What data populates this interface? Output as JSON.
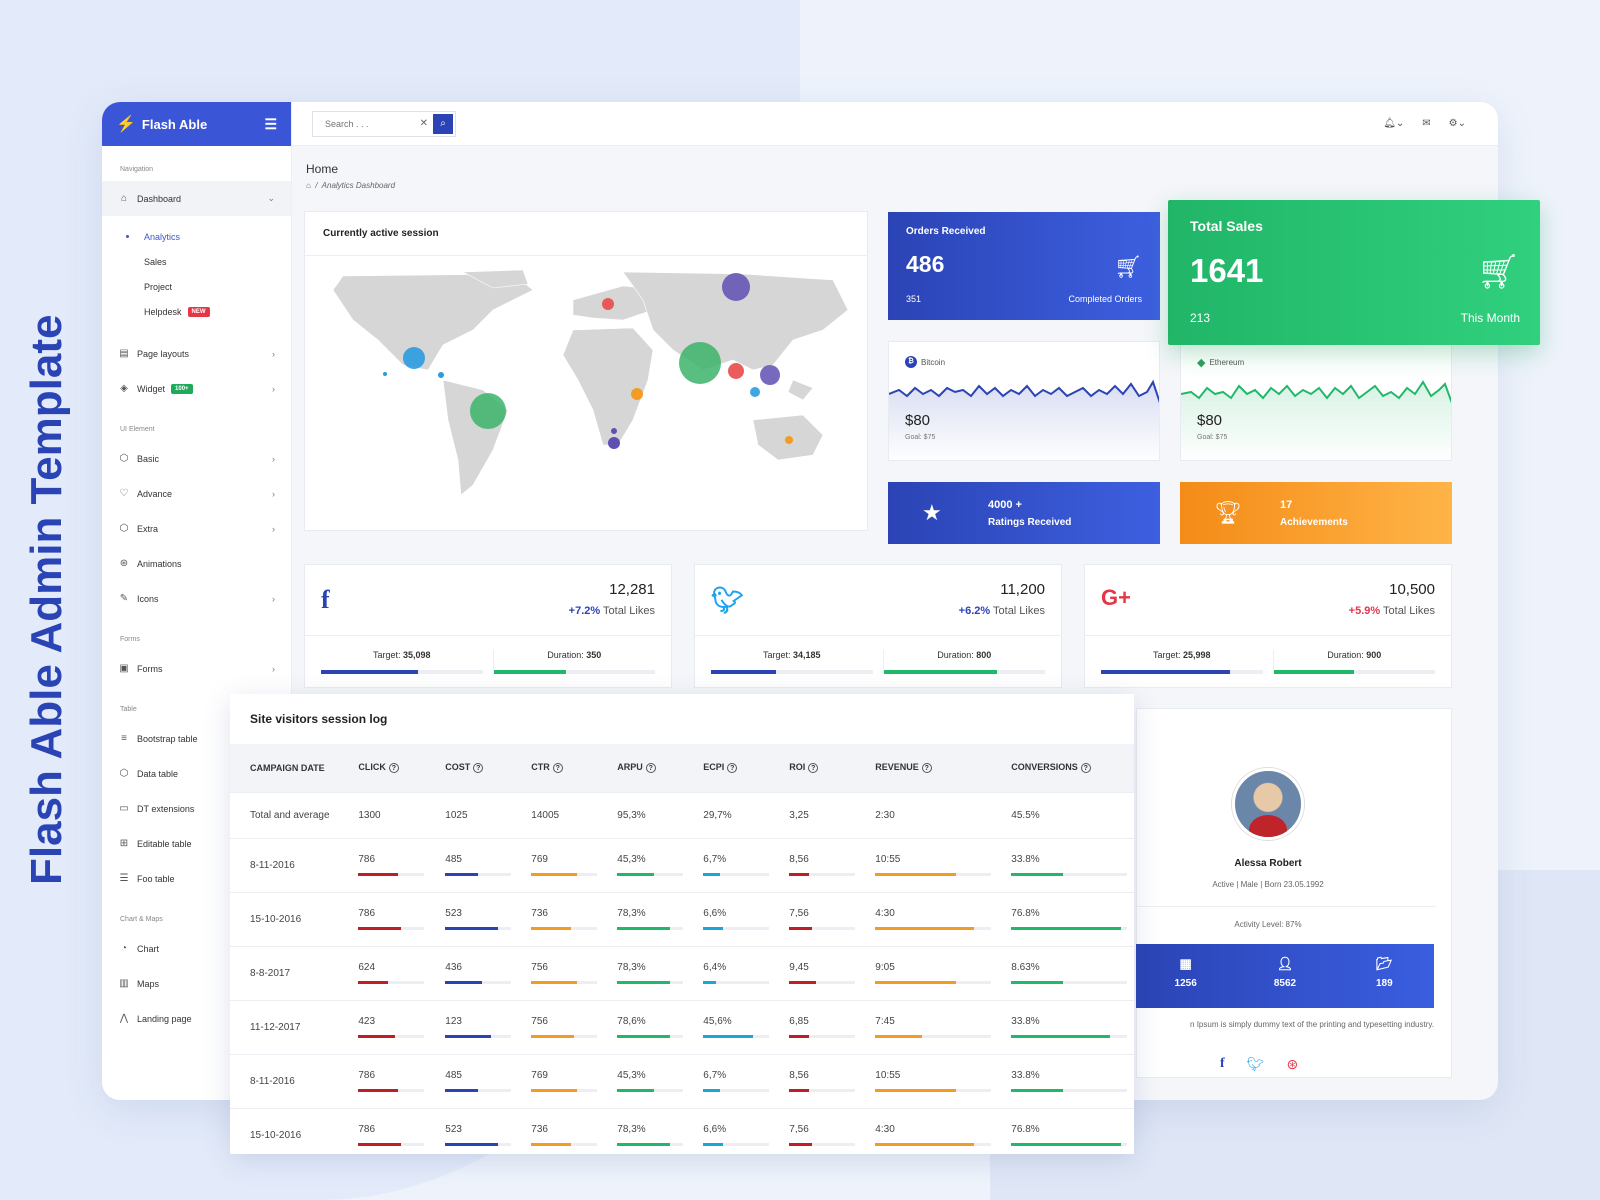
{
  "poster_title": "Flash Able Admin Template",
  "brand": {
    "name": "Flash Able"
  },
  "search": {
    "placeholder": "Search . . ."
  },
  "sidebar": {
    "caption_navigation": "Navigation",
    "dashboard": "Dashboard",
    "sub_items": [
      "Analytics",
      "Sales",
      "Project",
      "Helpdesk"
    ],
    "helpdesk_badge": "NEW",
    "page_layouts": "Page layouts",
    "widget": "Widget",
    "widget_badge": "100+",
    "caption_ui": "UI Element",
    "ui_items": [
      "Basic",
      "Advance",
      "Extra",
      "Animations",
      "Icons"
    ],
    "caption_forms": "Forms",
    "forms": "Forms",
    "caption_table": "Table",
    "table_items": [
      "Bootstrap table",
      "Data table",
      "DT extensions",
      "Editable table",
      "Foo table"
    ],
    "caption_chart": "Chart & Maps",
    "chart_items": [
      "Chart",
      "Maps",
      "Landing page"
    ]
  },
  "breadcrumb": {
    "title": "Home",
    "path": "Analytics Dashboard"
  },
  "map_card": {
    "title": "Currently active session"
  },
  "orders": {
    "title": "Orders Received",
    "value": "486",
    "sub": "351",
    "sub_label": "Completed Orders"
  },
  "total_sales": {
    "title": "Total Sales",
    "value": "1641",
    "sub": "213",
    "sub_label": "This Month"
  },
  "bitcoin": {
    "name": "Bitcoin",
    "price": "$80",
    "goal": "Goal: $75"
  },
  "ethereum": {
    "name": "Ethereum",
    "price": "$80",
    "goal": "Goal: $75"
  },
  "ratings": {
    "value": "4000 +",
    "label": "Ratings Received"
  },
  "achievements": {
    "value": "17",
    "label": "Achievements"
  },
  "social": [
    {
      "net": "facebook",
      "value": "12,281",
      "pct": "+7.2%",
      "pct_label": "Total Likes",
      "target_label": "Target:",
      "target": "35,098",
      "duration_label": "Duration:",
      "duration": "350",
      "target_progress": 0.6,
      "duration_progress": 0.45
    },
    {
      "net": "twitter",
      "value": "11,200",
      "pct": "+6.2%",
      "pct_label": "Total Likes",
      "target_label": "Target:",
      "target": "34,185",
      "duration_label": "Duration:",
      "duration": "800",
      "target_progress": 0.4,
      "duration_progress": 0.7
    },
    {
      "net": "google-plus",
      "value": "10,500",
      "pct": "+5.9%",
      "pct_label": "Total Likes",
      "target_label": "Target:",
      "target": "25,998",
      "duration_label": "Duration:",
      "duration": "900",
      "target_progress": 0.8,
      "duration_progress": 0.5
    }
  ],
  "profile": {
    "name": "Alessa Robert",
    "info": "Active | Male | Born 23.05.1992",
    "activity": "Activity Level: 87%",
    "stats": [
      "1256",
      "8562",
      "189"
    ],
    "desc": "n Ipsum is simply dummy text of the printing and typesetting industry."
  },
  "log": {
    "title": "Site visitors session log",
    "headers": [
      "CAMPAIGN DATE",
      "CLICK",
      "COST",
      "CTR",
      "ARPU",
      "ECPI",
      "ROI",
      "REVENUE",
      "CONVERSIONS"
    ],
    "total": [
      "Total and average",
      "1300",
      "1025",
      "14005",
      "95,3%",
      "29,7%",
      "3,25",
      "2:30",
      "45.5%"
    ],
    "rows": [
      {
        "cells": [
          "8-11-2016",
          "786",
          "485",
          "769",
          "45,3%",
          "6,7%",
          "8,56",
          "10:55",
          "33.8%"
        ],
        "bars": [
          0.6,
          0.5,
          0.7,
          0.55,
          0.25,
          0.3,
          0.7,
          0.45
        ]
      },
      {
        "cells": [
          "15-10-2016",
          "786",
          "523",
          "736",
          "78,3%",
          "6,6%",
          "7,56",
          "4:30",
          "76.8%"
        ],
        "bars": [
          0.65,
          0.8,
          0.6,
          0.8,
          0.3,
          0.35,
          0.85,
          0.95
        ]
      },
      {
        "cells": [
          "8-8-2017",
          "624",
          "436",
          "756",
          "78,3%",
          "6,4%",
          "9,45",
          "9:05",
          "8.63%"
        ],
        "bars": [
          0.45,
          0.55,
          0.7,
          0.8,
          0.2,
          0.4,
          0.7,
          0.45
        ]
      },
      {
        "cells": [
          "11-12-2017",
          "423",
          "123",
          "756",
          "78,6%",
          "45,6%",
          "6,85",
          "7:45",
          "33.8%"
        ],
        "bars": [
          0.55,
          0.7,
          0.65,
          0.8,
          0.75,
          0.3,
          0.4,
          0.85
        ]
      },
      {
        "cells": [
          "8-11-2016",
          "786",
          "485",
          "769",
          "45,3%",
          "6,7%",
          "8,56",
          "10:55",
          "33.8%"
        ],
        "bars": [
          0.6,
          0.5,
          0.7,
          0.55,
          0.25,
          0.3,
          0.7,
          0.45
        ]
      },
      {
        "cells": [
          "15-10-2016",
          "786",
          "523",
          "736",
          "78,3%",
          "6,6%",
          "7,56",
          "4:30",
          "76.8%"
        ],
        "bars": [
          0.65,
          0.8,
          0.6,
          0.8,
          0.3,
          0.35,
          0.85,
          0.95
        ]
      }
    ]
  },
  "colors": {
    "primary": "#2b44b5",
    "green": "#22b86a",
    "orange": "#f5a623",
    "red": "#c11d24",
    "cyan": "#1aa6d6",
    "bar_colors": [
      "#c11d24",
      "#2b44b5",
      "#f39c24",
      "#20b86a",
      "#1aa6d6",
      "#c11d24",
      "#f39c24",
      "#20b86a"
    ]
  }
}
